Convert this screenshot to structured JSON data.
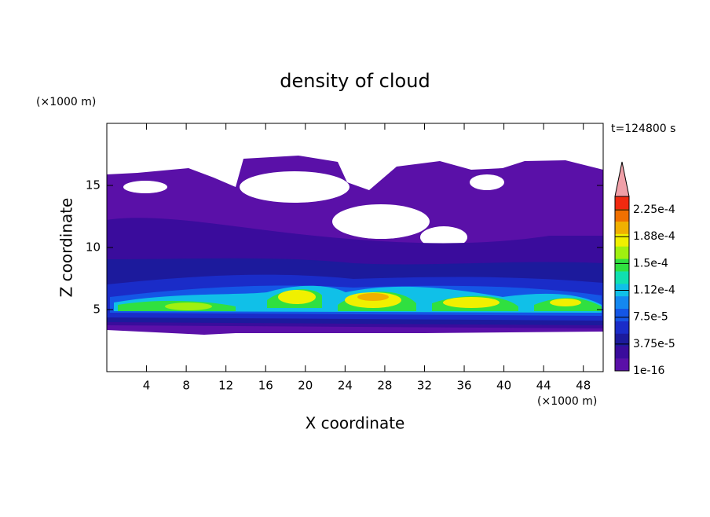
{
  "chart_data": {
    "type": "contour",
    "title": "density of cloud",
    "x_label": "X coordinate",
    "y_label": "Z coordinate",
    "x_unit": "(×1000 m)",
    "y_unit": "(×1000 m)",
    "time_label": "t=124800 s",
    "xlim": [
      0,
      50
    ],
    "xticks": [
      4,
      8,
      12,
      16,
      20,
      24,
      28,
      32,
      36,
      40,
      44,
      48
    ],
    "ylim": [
      0,
      20
    ],
    "yticks": [
      5,
      10,
      15
    ],
    "colorbar": {
      "clim": [
        1e-16,
        0.00024375
      ],
      "levels": [
        {
          "value": 1e-16,
          "label": "1e-16"
        },
        {
          "value": 3.75e-05,
          "label": "3.75e-5"
        },
        {
          "value": 7.5e-05,
          "label": "7.5e-5"
        },
        {
          "value": 0.0001125,
          "label": "1.12e-4"
        },
        {
          "value": 0.00015,
          "label": "1.5e-4"
        },
        {
          "value": 0.0001875,
          "label": "1.88e-4"
        },
        {
          "value": 0.000225,
          "label": "2.25e-4"
        }
      ],
      "colors": [
        "#5a10a8",
        "#3a0c9c",
        "#1c1a9c",
        "#1a2cc8",
        "#1456e6",
        "#1488f0",
        "#10c0e8",
        "#10e0b0",
        "#30e040",
        "#a0f010",
        "#f0f000",
        "#f0b000",
        "#f07000",
        "#f02a10"
      ],
      "extend_color": "#f0a0a8"
    }
  }
}
